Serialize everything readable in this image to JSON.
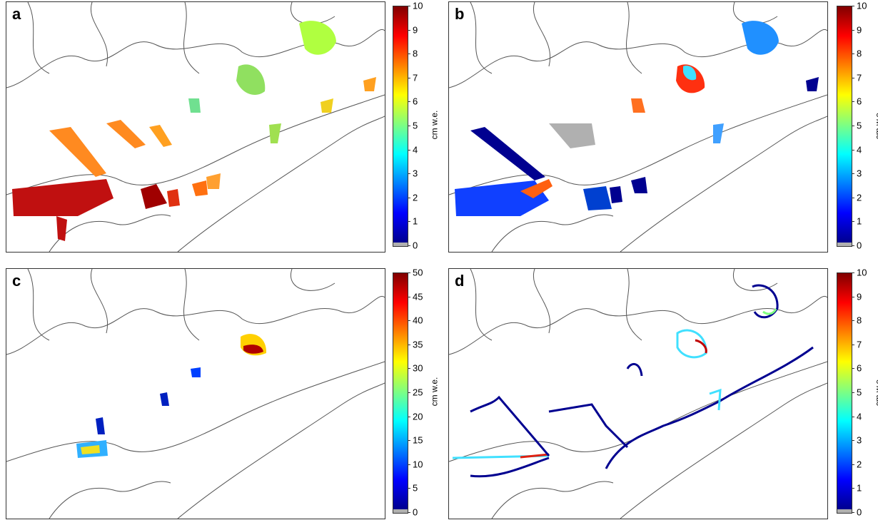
{
  "panels": [
    {
      "letter": "a",
      "colorbar": {
        "ticks": [
          "10",
          "9",
          "8",
          "7",
          "6",
          "5",
          "4",
          "3",
          "2",
          "1",
          "0"
        ],
        "max": 10,
        "unit": "cm w.e."
      }
    },
    {
      "letter": "b",
      "colorbar": {
        "ticks": [
          "10",
          "9",
          "8",
          "7",
          "6",
          "5",
          "4",
          "3",
          "2",
          "1",
          "0"
        ],
        "max": 10,
        "unit": "cm w.e."
      }
    },
    {
      "letter": "c",
      "colorbar": {
        "ticks": [
          "50",
          "45",
          "40",
          "35",
          "30",
          "25",
          "20",
          "15",
          "10",
          "5",
          "0"
        ],
        "max": 50,
        "unit": "cm w.e."
      }
    },
    {
      "letter": "d",
      "colorbar": {
        "ticks": [
          "10",
          "9",
          "8",
          "7",
          "6",
          "5",
          "4",
          "3",
          "2",
          "1",
          "0"
        ],
        "max": 10,
        "unit": "cm w.e."
      }
    }
  ],
  "colors": {
    "jet": [
      "#00008f",
      "#0000ff",
      "#0080ff",
      "#00ffff",
      "#80ff80",
      "#ffff00",
      "#ff8000",
      "#ff0000",
      "#800000"
    ],
    "nodata": "#b0b0b0",
    "coastline": "#555555"
  }
}
